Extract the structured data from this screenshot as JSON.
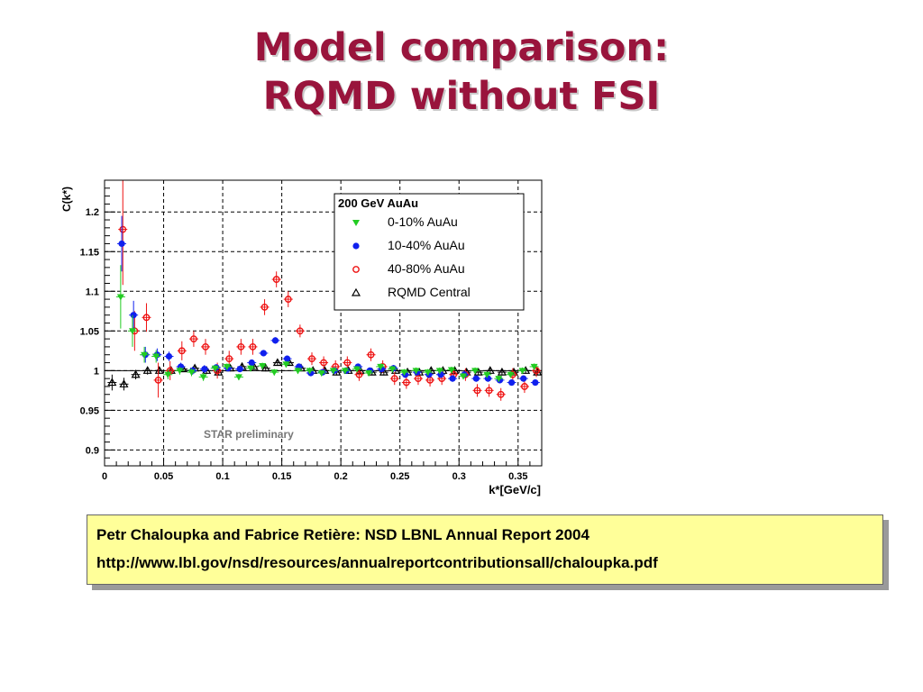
{
  "slide": {
    "title_line1": "Model comparison:",
    "title_line2": "RQMD without FSI"
  },
  "citation": {
    "line1": "Petr Chaloupka and Fabrice Retière: NSD LBNL Annual Report 2004",
    "line2": "http://www.lbl.gov/nsd/resources/annualreportcontributionsall/chaloupka.pdf"
  },
  "chart_data": {
    "type": "scatter",
    "xlabel": "k*[GeV/c]",
    "ylabel": "C(k*)",
    "xlim": [
      0,
      0.37
    ],
    "ylim": [
      0.88,
      1.24
    ],
    "xticks": [
      "0",
      "0.05",
      "0.1",
      "0.15",
      "0.2",
      "0.25",
      "0.3",
      "0.35"
    ],
    "yticks": [
      "0.9",
      "0.95",
      "1",
      "1.05",
      "1.1",
      "1.15",
      "1.2"
    ],
    "grid": true,
    "reference_line": 1,
    "legend_title": "200 GeV AuAu",
    "legend_position": "top-right",
    "annotation": "STAR preliminary",
    "series": [
      {
        "name": "0-10%  AuAu",
        "marker": "triangle-down",
        "color": "#22cc22",
        "x": [
          0.015,
          0.025,
          0.035,
          0.045,
          0.055,
          0.065,
          0.075,
          0.085,
          0.095,
          0.105,
          0.115,
          0.125,
          0.135,
          0.145,
          0.155,
          0.165,
          0.175,
          0.185,
          0.195,
          0.205,
          0.215,
          0.225,
          0.235,
          0.245,
          0.255,
          0.265,
          0.275,
          0.285,
          0.295,
          0.305,
          0.315,
          0.325,
          0.335,
          0.345,
          0.355,
          0.365
        ],
        "y": [
          1.093,
          1.05,
          1.02,
          1.018,
          0.995,
          1.0,
          0.998,
          0.992,
          1.003,
          1.005,
          0.992,
          1.003,
          1.006,
          0.998,
          1.008,
          1.0,
          1.0,
          0.997,
          1.0,
          1.0,
          1.002,
          0.997,
          1.005,
          1.002,
          0.998,
          1.0,
          0.998,
          1.0,
          1.001,
          0.993,
          1.0,
          0.995,
          0.99,
          0.995,
          1.0,
          1.005
        ],
        "yerr": [
          0.04,
          0.02,
          0.01,
          0.008,
          0.006,
          0.005,
          0.005,
          0.005,
          0.004,
          0.004,
          0.004,
          0.004,
          0.004,
          0.004,
          0.004,
          0.004,
          0.004,
          0.004,
          0.004,
          0.004,
          0.004,
          0.004,
          0.004,
          0.004,
          0.004,
          0.004,
          0.004,
          0.004,
          0.004,
          0.004,
          0.004,
          0.004,
          0.004,
          0.004,
          0.004,
          0.004
        ]
      },
      {
        "name": "10-40%  AuAu",
        "marker": "circle",
        "color": "#1020ee",
        "x": [
          0.015,
          0.025,
          0.035,
          0.045,
          0.055,
          0.065,
          0.075,
          0.085,
          0.095,
          0.105,
          0.115,
          0.125,
          0.135,
          0.145,
          0.155,
          0.165,
          0.175,
          0.185,
          0.195,
          0.205,
          0.215,
          0.225,
          0.235,
          0.245,
          0.255,
          0.265,
          0.275,
          0.285,
          0.295,
          0.305,
          0.315,
          0.325,
          0.335,
          0.345,
          0.355,
          0.365
        ],
        "y": [
          1.16,
          1.07,
          1.02,
          1.02,
          1.018,
          1.005,
          1.0,
          1.002,
          1.004,
          1.003,
          1.002,
          1.01,
          1.022,
          1.038,
          1.015,
          1.005,
          0.997,
          0.998,
          1.0,
          1.0,
          1.005,
          1.0,
          1.002,
          1.003,
          0.995,
          0.998,
          0.995,
          0.995,
          0.99,
          0.995,
          0.99,
          0.99,
          0.988,
          0.985,
          0.99,
          0.985
        ],
        "yerr": [
          0.035,
          0.018,
          0.01,
          0.008,
          0.006,
          0.005,
          0.005,
          0.005,
          0.004,
          0.004,
          0.004,
          0.004,
          0.004,
          0.004,
          0.004,
          0.004,
          0.004,
          0.004,
          0.004,
          0.004,
          0.004,
          0.004,
          0.004,
          0.004,
          0.004,
          0.004,
          0.004,
          0.004,
          0.004,
          0.004,
          0.004,
          0.004,
          0.004,
          0.004,
          0.004,
          0.004
        ]
      },
      {
        "name": "40-80%  AuAu",
        "marker": "open-circle",
        "color": "#ee1111",
        "x": [
          0.015,
          0.025,
          0.035,
          0.045,
          0.055,
          0.065,
          0.075,
          0.085,
          0.095,
          0.105,
          0.115,
          0.125,
          0.135,
          0.145,
          0.155,
          0.165,
          0.175,
          0.185,
          0.195,
          0.205,
          0.215,
          0.225,
          0.235,
          0.245,
          0.255,
          0.265,
          0.275,
          0.285,
          0.295,
          0.305,
          0.315,
          0.325,
          0.335,
          0.345,
          0.355,
          0.365
        ],
        "y": [
          1.178,
          1.05,
          1.067,
          0.988,
          1.0,
          1.025,
          1.04,
          1.03,
          1.0,
          1.015,
          1.03,
          1.03,
          1.08,
          1.115,
          1.09,
          1.05,
          1.015,
          1.01,
          1.005,
          1.01,
          0.995,
          1.02,
          1.005,
          0.99,
          0.985,
          0.99,
          0.988,
          0.99,
          0.995,
          0.995,
          0.975,
          0.975,
          0.97,
          0.995,
          0.98,
          1.0
        ],
        "yerr": [
          0.07,
          0.025,
          0.018,
          0.022,
          0.012,
          0.012,
          0.01,
          0.01,
          0.01,
          0.01,
          0.01,
          0.01,
          0.01,
          0.01,
          0.01,
          0.008,
          0.008,
          0.008,
          0.008,
          0.008,
          0.008,
          0.008,
          0.008,
          0.008,
          0.008,
          0.008,
          0.008,
          0.008,
          0.008,
          0.008,
          0.008,
          0.008,
          0.008,
          0.008,
          0.008,
          0.008
        ]
      },
      {
        "name": "RQMD   Central",
        "marker": "open-triangle",
        "color": "#000000",
        "x": [
          0.005,
          0.015,
          0.025,
          0.035,
          0.045,
          0.055,
          0.065,
          0.075,
          0.085,
          0.095,
          0.105,
          0.115,
          0.125,
          0.135,
          0.145,
          0.155,
          0.165,
          0.175,
          0.185,
          0.195,
          0.205,
          0.215,
          0.225,
          0.235,
          0.245,
          0.255,
          0.265,
          0.275,
          0.285,
          0.295,
          0.305,
          0.315,
          0.325,
          0.335,
          0.345,
          0.355,
          0.365
        ],
        "y": [
          0.985,
          0.983,
          0.995,
          1.0,
          1.0,
          1.0,
          1.002,
          1.003,
          1.0,
          0.998,
          1.003,
          1.005,
          1.005,
          1.003,
          1.01,
          1.01,
          1.003,
          1.0,
          1.0,
          0.998,
          1.0,
          1.0,
          0.998,
          0.998,
          1.0,
          0.998,
          0.998,
          1.0,
          1.0,
          1.0,
          0.998,
          0.998,
          1.0,
          0.998,
          0.998,
          1.0,
          0.998
        ],
        "yerr": [
          0.01,
          0.008,
          0.006,
          0.005,
          0.004,
          0.004,
          0.004,
          0.004,
          0.004,
          0.004,
          0.004,
          0.004,
          0.004,
          0.004,
          0.004,
          0.004,
          0.004,
          0.004,
          0.004,
          0.004,
          0.004,
          0.004,
          0.004,
          0.004,
          0.004,
          0.004,
          0.004,
          0.004,
          0.004,
          0.004,
          0.004,
          0.004,
          0.004,
          0.004,
          0.004,
          0.004,
          0.004
        ]
      }
    ]
  }
}
